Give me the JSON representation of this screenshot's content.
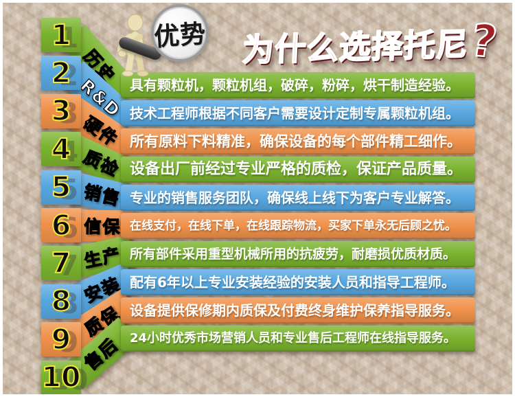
{
  "title": {
    "text": "为什么选择托尼",
    "mark": "?"
  },
  "badge": {
    "text": "优势"
  },
  "colors": {
    "green": "#7ab32e",
    "blue": "#57a7e0",
    "orange": "#f0914a",
    "title_red": "#9c2125",
    "number_fill": "#0d0d0d",
    "number_outline": "#f3e73b",
    "bar_text": "#ffffff"
  },
  "items": [
    {
      "num": "1",
      "label": "历史",
      "color": "green",
      "text": "具有颗粒机，颗粒机组，破碎，粉碎，烘干制造经验。"
    },
    {
      "num": "2",
      "label": "R&D",
      "color": "blue",
      "text": "技术工程师根据不同客户需要设计定制专属颗粒机组。"
    },
    {
      "num": "3",
      "label": "硬件",
      "color": "orange",
      "text": "所有原料下料精准，确保设备的每个部件精工细作。"
    },
    {
      "num": "4",
      "label": "质检",
      "color": "green",
      "text": "设备出厂前经过专业严格的质检，保证产品质量。"
    },
    {
      "num": "5",
      "label": "销售",
      "color": "blue",
      "text": "专业的销售服务团队，确保线上线下为客户专业解答。"
    },
    {
      "num": "6",
      "label": "信保",
      "color": "orange",
      "text": "在线支付，在线下单，在线跟踪物流，买家下单永无后顾之忧。"
    },
    {
      "num": "7",
      "label": "生产",
      "color": "green",
      "text": "所有部件采用重型机械所用的抗疲劳，耐磨损优质材质。"
    },
    {
      "num": "8",
      "label": "安装",
      "color": "blue",
      "text": "配有6年以上专业安装经验的安装人员和指导工程师。"
    },
    {
      "num": "9",
      "label": "质保",
      "color": "orange",
      "text": "设备提供保修期内质保及付费终身维护保养指导服务。"
    },
    {
      "num": "10",
      "label": "售后",
      "color": "green",
      "text": "24小时优秀市场营销人员和专业售后工程师在线指导服务。"
    }
  ]
}
